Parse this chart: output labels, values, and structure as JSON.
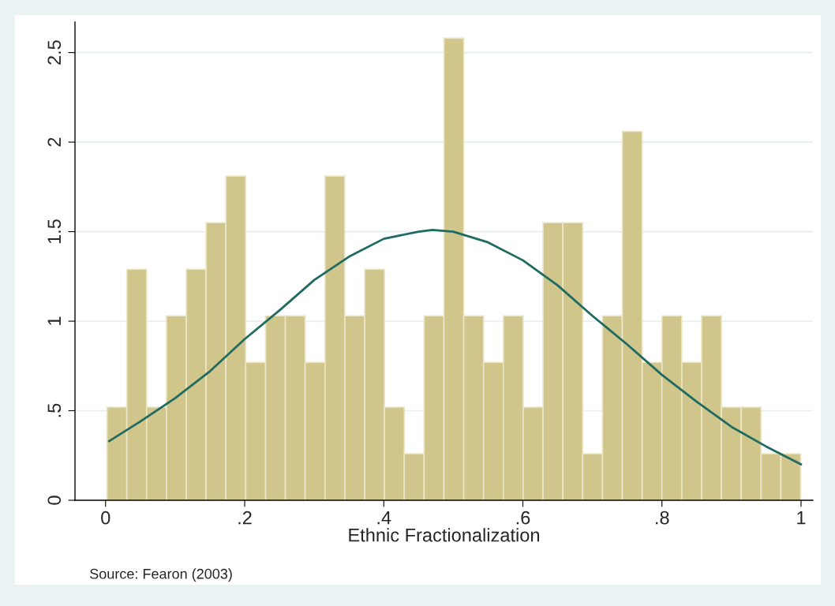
{
  "chart_data": {
    "type": "histogram",
    "xlabel": "Ethnic Fractionalization",
    "annotations": [
      "Source: Fearon (2003)"
    ],
    "bins": [
      0.002,
      0.0305,
      0.059,
      0.0875,
      0.116,
      0.1445,
      0.173,
      0.2015,
      0.23,
      0.2585,
      0.287,
      0.3155,
      0.344,
      0.3725,
      0.401,
      0.4295,
      0.458,
      0.4865,
      0.515,
      0.5435,
      0.572,
      0.6005,
      0.629,
      0.6575,
      0.686,
      0.7145,
      0.743,
      0.7715,
      0.8,
      0.8285,
      0.857,
      0.8855,
      0.914,
      0.9425,
      0.971,
      0.9995
    ],
    "values": [
      0.52,
      1.29,
      0.52,
      1.03,
      1.29,
      1.55,
      1.81,
      0.77,
      1.03,
      1.03,
      0.77,
      1.81,
      1.03,
      1.29,
      0.52,
      0.26,
      1.03,
      2.58,
      1.03,
      0.77,
      1.03,
      0.52,
      1.55,
      1.55,
      0.26,
      1.03,
      2.06,
      0.77,
      1.03,
      0.77,
      1.03,
      0.52,
      0.52,
      0.26,
      0.26
    ],
    "color": "#d0c58a",
    "series": [
      {
        "type": "line",
        "color": "#1f6b62",
        "x": [
          0.005,
          0.05,
          0.1,
          0.15,
          0.2,
          0.25,
          0.3,
          0.35,
          0.4,
          0.45,
          0.47,
          0.5,
          0.55,
          0.6,
          0.65,
          0.7,
          0.75,
          0.8,
          0.85,
          0.9,
          0.95,
          1.0
        ],
        "values": [
          0.33,
          0.44,
          0.57,
          0.72,
          0.9,
          1.06,
          1.23,
          1.36,
          1.46,
          1.5,
          1.51,
          1.5,
          1.44,
          1.34,
          1.2,
          1.03,
          0.87,
          0.7,
          0.55,
          0.41,
          0.3,
          0.2
        ]
      }
    ],
    "xlim": [
      -0.044,
      1.017
    ],
    "ylim": [
      0,
      2.67
    ],
    "xticks": [
      0,
      {
        "value": 0.2,
        "label": ".2"
      },
      {
        "value": 0.4,
        "label": ".4"
      },
      {
        "value": 0.6,
        "label": ".6"
      },
      {
        "value": 0.8,
        "label": ".8"
      },
      1
    ],
    "yticks": [
      0,
      {
        "value": 0.5,
        "label": ".5"
      },
      1,
      1.5,
      2,
      2.5
    ],
    "grid": "y"
  }
}
